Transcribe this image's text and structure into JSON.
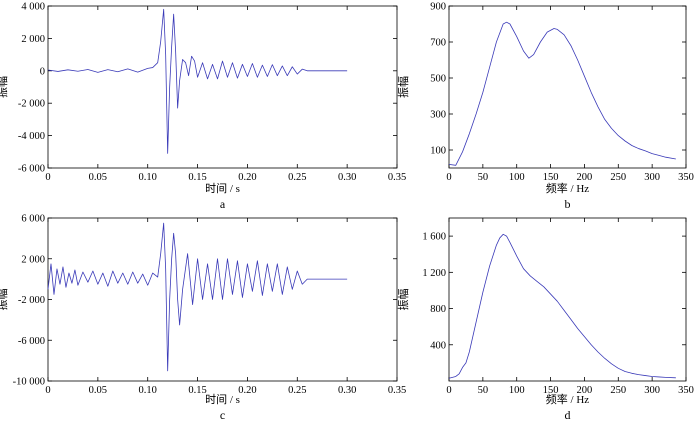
{
  "chart_data": [
    {
      "id": "a",
      "type": "line",
      "panel_label": "a",
      "xlabel": "时间 / s",
      "ylabel": "振幅",
      "xlim": [
        0,
        0.35
      ],
      "ylim": [
        -6000,
        4000
      ],
      "x_ticks": [
        0,
        0.05,
        0.1,
        0.15,
        0.2,
        0.25,
        0.3,
        0.35
      ],
      "x_tick_labels": [
        "0",
        "0.05",
        "0.10",
        "0.15",
        "0.20",
        "0.25",
        "0.30",
        "0.35"
      ],
      "y_ticks": [
        -6000,
        -4000,
        -2000,
        0,
        2000,
        4000
      ],
      "y_tick_labels": [
        "-6 000",
        "-4 000",
        "-2 000",
        "0",
        "2 000",
        "4 000"
      ],
      "color": "#3a3ab8",
      "series": [
        {
          "x": [
            0,
            0.01,
            0.02,
            0.03,
            0.04,
            0.05,
            0.06,
            0.07,
            0.08,
            0.09,
            0.1,
            0.105,
            0.11,
            0.113,
            0.116,
            0.118,
            0.12,
            0.122,
            0.124,
            0.126,
            0.128,
            0.13,
            0.132,
            0.135,
            0.138,
            0.141,
            0.144,
            0.147,
            0.15,
            0.155,
            0.16,
            0.165,
            0.17,
            0.175,
            0.18,
            0.185,
            0.19,
            0.195,
            0.2,
            0.205,
            0.21,
            0.215,
            0.22,
            0.225,
            0.23,
            0.235,
            0.24,
            0.245,
            0.25,
            0.255,
            0.26,
            0.3
          ],
          "y": [
            50,
            -40,
            60,
            -30,
            80,
            -100,
            70,
            -60,
            120,
            -80,
            150,
            200,
            500,
            1800,
            3800,
            1000,
            -5100,
            -1000,
            1500,
            3500,
            1200,
            -2300,
            -600,
            700,
            500,
            -300,
            900,
            600,
            -400,
            500,
            -500,
            400,
            -500,
            600,
            -400,
            500,
            -450,
            400,
            -350,
            450,
            -400,
            350,
            -350,
            380,
            -300,
            300,
            -300,
            250,
            -200,
            100,
            0,
            0
          ]
        }
      ]
    },
    {
      "id": "b",
      "type": "line",
      "panel_label": "b",
      "xlabel": "频率 / Hz",
      "ylabel": "振幅",
      "xlim": [
        0,
        350
      ],
      "ylim": [
        0,
        900
      ],
      "x_ticks": [
        0,
        50,
        100,
        150,
        200,
        250,
        300,
        350
      ],
      "x_tick_labels": [
        "0",
        "50",
        "100",
        "150",
        "200",
        "250",
        "300",
        "350"
      ],
      "y_ticks": [
        100,
        300,
        500,
        700,
        900
      ],
      "y_tick_labels": [
        "100",
        "300",
        "500",
        "700",
        "900"
      ],
      "color": "#3a3ab8",
      "series": [
        {
          "x": [
            0,
            10,
            20,
            30,
            40,
            50,
            60,
            70,
            80,
            85,
            90,
            100,
            110,
            118,
            125,
            135,
            145,
            155,
            160,
            170,
            180,
            190,
            200,
            210,
            220,
            230,
            240,
            250,
            260,
            270,
            280,
            290,
            300,
            310,
            320,
            335
          ],
          "y": [
            20,
            15,
            90,
            190,
            300,
            420,
            560,
            700,
            800,
            810,
            800,
            730,
            650,
            610,
            630,
            700,
            755,
            775,
            770,
            740,
            680,
            600,
            510,
            420,
            340,
            270,
            220,
            180,
            150,
            125,
            108,
            95,
            80,
            70,
            60,
            50
          ]
        }
      ]
    },
    {
      "id": "c",
      "type": "line",
      "panel_label": "c",
      "xlabel": "时间 / s",
      "ylabel": "振幅",
      "xlim": [
        0,
        0.35
      ],
      "ylim": [
        -10000,
        6000
      ],
      "x_ticks": [
        0,
        0.05,
        0.1,
        0.15,
        0.2,
        0.25,
        0.3,
        0.35
      ],
      "x_tick_labels": [
        "0",
        "0.05",
        "0.10",
        "0.15",
        "0.20",
        "0.25",
        "0.30",
        "0.35"
      ],
      "y_ticks": [
        -10000,
        -6000,
        -2000,
        2000,
        6000
      ],
      "y_tick_labels": [
        "-10 000",
        "-6 000",
        "-2 000",
        "2 000",
        "6 000"
      ],
      "color": "#3a3ab8",
      "series": [
        {
          "x": [
            0,
            0.003,
            0.006,
            0.009,
            0.012,
            0.015,
            0.018,
            0.021,
            0.024,
            0.027,
            0.03,
            0.035,
            0.04,
            0.045,
            0.05,
            0.055,
            0.06,
            0.065,
            0.07,
            0.075,
            0.08,
            0.085,
            0.09,
            0.095,
            0.1,
            0.105,
            0.11,
            0.113,
            0.116,
            0.118,
            0.12,
            0.122,
            0.124,
            0.126,
            0.128,
            0.13,
            0.132,
            0.135,
            0.14,
            0.145,
            0.15,
            0.155,
            0.16,
            0.165,
            0.17,
            0.175,
            0.18,
            0.185,
            0.19,
            0.195,
            0.2,
            0.205,
            0.21,
            0.215,
            0.22,
            0.225,
            0.23,
            0.235,
            0.24,
            0.245,
            0.25,
            0.255,
            0.26,
            0.3
          ],
          "y": [
            -1000,
            1500,
            -1500,
            1000,
            -500,
            1200,
            -800,
            600,
            -400,
            900,
            -600,
            700,
            -300,
            800,
            -500,
            600,
            -700,
            800,
            -400,
            600,
            -500,
            700,
            -400,
            500,
            -600,
            600,
            200,
            2500,
            5500,
            1000,
            -9000,
            -2000,
            2000,
            4500,
            2500,
            -2000,
            -4500,
            -1000,
            2500,
            -2500,
            2000,
            -2000,
            1500,
            -2000,
            2000,
            -2000,
            2000,
            -1500,
            1800,
            -1800,
            1500,
            -1200,
            1800,
            -1600,
            1500,
            -1200,
            1500,
            -1500,
            1200,
            -1000,
            800,
            -500,
            0,
            0
          ]
        }
      ]
    },
    {
      "id": "d",
      "type": "line",
      "panel_label": "d",
      "xlabel": "频率 / Hz",
      "ylabel": "振幅",
      "xlim": [
        0,
        350
      ],
      "ylim": [
        0,
        1800
      ],
      "x_ticks": [
        0,
        50,
        100,
        150,
        200,
        250,
        300,
        350
      ],
      "x_tick_labels": [
        "0",
        "50",
        "100",
        "150",
        "200",
        "250",
        "300",
        "350"
      ],
      "y_ticks": [
        400,
        800,
        1200,
        1600
      ],
      "y_tick_labels": [
        "400",
        "800",
        "1 200",
        "1 600"
      ],
      "color": "#3a3ab8",
      "series": [
        {
          "x": [
            0,
            10,
            15,
            20,
            25,
            30,
            40,
            50,
            60,
            70,
            75,
            80,
            85,
            90,
            100,
            110,
            120,
            130,
            140,
            150,
            160,
            170,
            180,
            190,
            200,
            210,
            220,
            230,
            240,
            250,
            260,
            270,
            280,
            290,
            300,
            310,
            320,
            335
          ],
          "y": [
            30,
            50,
            80,
            150,
            200,
            320,
            650,
            980,
            1270,
            1500,
            1580,
            1620,
            1600,
            1530,
            1380,
            1240,
            1160,
            1100,
            1040,
            960,
            880,
            780,
            680,
            580,
            490,
            400,
            320,
            250,
            190,
            140,
            105,
            85,
            70,
            60,
            50,
            45,
            40,
            35
          ]
        }
      ]
    }
  ]
}
